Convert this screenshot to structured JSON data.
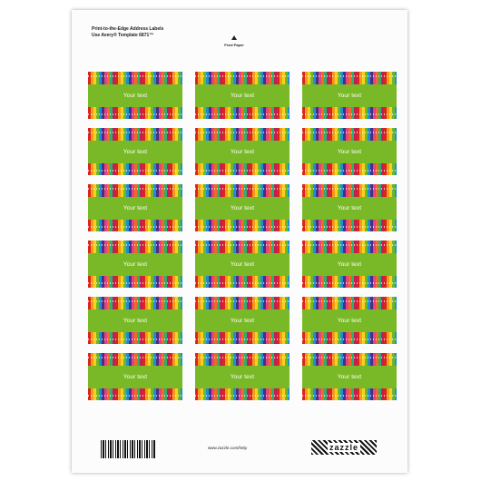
{
  "sheet": {
    "header_line_1": "Print-to-the-Edge Address Labels",
    "header_line_2": "Use Avery® Template 6871™",
    "feed_label": "Feed Paper",
    "footer_url": "www.zazzle.com/help",
    "logo_text": "zazzle"
  },
  "labels": [
    "Your text",
    "Your text",
    "Your text",
    "Your text",
    "Your text",
    "Your text",
    "Your text",
    "Your text",
    "Your text",
    "Your text",
    "Your text",
    "Your text",
    "Your text",
    "Your text",
    "Your text",
    "Your text",
    "Your text",
    "Your text"
  ],
  "colors": {
    "band": "#79b928",
    "stripe_red": "#d8261e",
    "stripe_orange": "#f39a1c",
    "stripe_yellow": "#f7d11e",
    "stripe_green": "#6fb72a",
    "stripe_blue": "#1f8fd0",
    "stripe_purple": "#4b2e83",
    "stripe_pink": "#e3447f"
  }
}
